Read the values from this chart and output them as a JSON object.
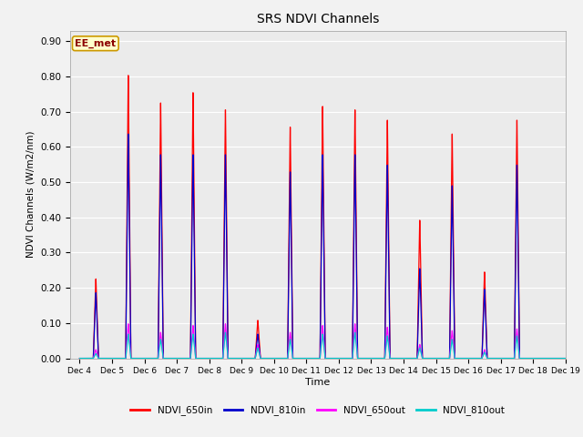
{
  "title": "SRS NDVI Channels",
  "ylabel": "NDVI Channels (W/m2/nm)",
  "xlabel": "Time",
  "annotation": "EE_met",
  "ylim": [
    0.0,
    0.93
  ],
  "bg_color": "#ebebeb",
  "grid_color": "#ffffff",
  "series_colors": {
    "NDVI_650in": "#ff0000",
    "NDVI_810in": "#0000cc",
    "NDVI_650out": "#ff00ff",
    "NDVI_810out": "#00cccc"
  },
  "x_tick_labels": [
    "Dec 4",
    "Dec 5",
    "Dec 6",
    "Dec 7",
    "Dec 8",
    "Dec 9",
    "Dec 10",
    "Dec 11",
    "Dec 12",
    "Dec 13",
    "Dec 14",
    "Dec 15",
    "Dec 16",
    "Dec 17",
    "Dec 18",
    "Dec 19"
  ],
  "days": [
    {
      "day": 0,
      "peak_650in": 0.23,
      "peak_810in": 0.19,
      "peak_650out": 0.025,
      "peak_810out": 0.014
    },
    {
      "day": 1,
      "peak_650in": 0.82,
      "peak_810in": 0.65,
      "peak_650out": 0.1,
      "peak_810out": 0.07
    },
    {
      "day": 2,
      "peak_650in": 0.74,
      "peak_810in": 0.59,
      "peak_650out": 0.075,
      "peak_810out": 0.055
    },
    {
      "day": 3,
      "peak_650in": 0.77,
      "peak_810in": 0.59,
      "peak_650out": 0.095,
      "peak_810out": 0.07
    },
    {
      "day": 4,
      "peak_650in": 0.72,
      "peak_810in": 0.59,
      "peak_650out": 0.1,
      "peak_810out": 0.075
    },
    {
      "day": 5,
      "peak_650in": 0.11,
      "peak_810in": 0.07,
      "peak_650out": 0.04,
      "peak_810out": 0.03
    },
    {
      "day": 6,
      "peak_650in": 0.67,
      "peak_810in": 0.54,
      "peak_650out": 0.075,
      "peak_810out": 0.055
    },
    {
      "day": 7,
      "peak_650in": 0.73,
      "peak_810in": 0.59,
      "peak_650out": 0.095,
      "peak_810out": 0.07
    },
    {
      "day": 8,
      "peak_650in": 0.72,
      "peak_810in": 0.59,
      "peak_650out": 0.1,
      "peak_810out": 0.075
    },
    {
      "day": 9,
      "peak_650in": 0.69,
      "peak_810in": 0.56,
      "peak_650out": 0.09,
      "peak_810out": 0.065
    },
    {
      "day": 10,
      "peak_650in": 0.4,
      "peak_810in": 0.26,
      "peak_650out": 0.04,
      "peak_810out": 0.03
    },
    {
      "day": 11,
      "peak_650in": 0.65,
      "peak_810in": 0.5,
      "peak_650out": 0.08,
      "peak_810out": 0.055
    },
    {
      "day": 12,
      "peak_650in": 0.25,
      "peak_810in": 0.2,
      "peak_650out": 0.025,
      "peak_810out": 0.018
    },
    {
      "day": 13,
      "peak_650in": 0.69,
      "peak_810in": 0.56,
      "peak_650out": 0.085,
      "peak_810out": 0.065
    },
    {
      "day": 14,
      "peak_650in": 0.0,
      "peak_810in": 0.0,
      "peak_650out": 0.0,
      "peak_810out": 0.0
    }
  ]
}
